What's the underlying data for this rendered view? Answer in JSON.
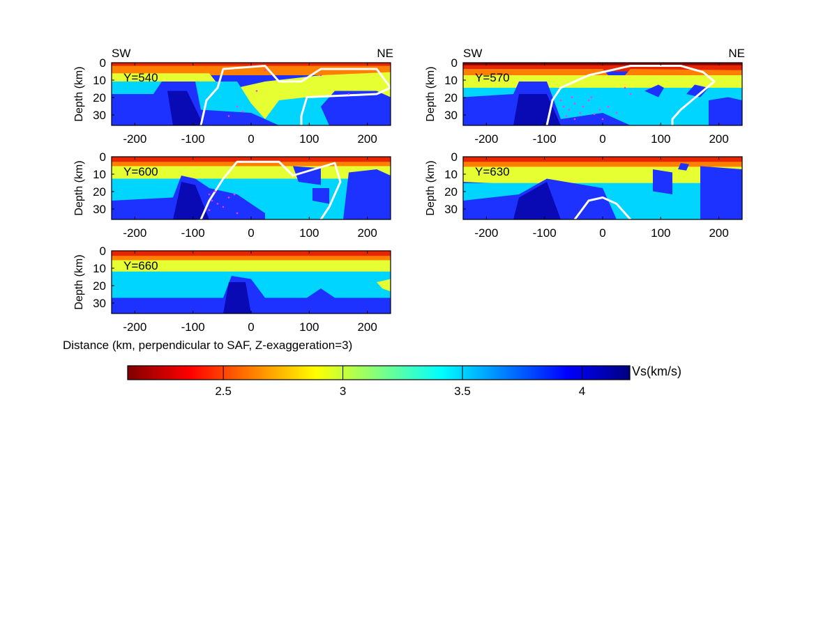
{
  "figure": {
    "direction_left": "SW",
    "direction_right": "NE",
    "x_axis_label": "Distance (km, perpendicular to SAF, Z-exaggeration=3)",
    "y_axis_label": "Depth (km)"
  },
  "chart_data": {
    "type": "heatmap",
    "x_ticks": [
      -200,
      -100,
      0,
      100,
      200
    ],
    "y_ticks": [
      0,
      10,
      20,
      30
    ],
    "xlim": [
      -240,
      240
    ],
    "ylim": [
      0,
      36
    ],
    "y_reversed": true,
    "grid": false,
    "panels": [
      {
        "label": "Y=540",
        "direction_left": "SW",
        "direction_right": "NE",
        "white_contour": true,
        "seismicity": "sparse"
      },
      {
        "label": "Y=570",
        "direction_left": "SW",
        "direction_right": "NE",
        "white_contour": true,
        "seismicity": "dense"
      },
      {
        "label": "Y=600",
        "white_contour": true,
        "seismicity": "moderate"
      },
      {
        "label": "Y=630",
        "white_contour": true,
        "seismicity": "none"
      },
      {
        "label": "Y=660",
        "white_contour": false,
        "seismicity": "none"
      }
    ],
    "colorbar": {
      "title": "Vs(km/s)",
      "min": 2.1,
      "max": 4.2,
      "ticks": [
        "2.5",
        "3",
        "3.5",
        "4"
      ],
      "tick_values": [
        2.5,
        3.0,
        3.5,
        4.0
      ],
      "colormap": "jet-reversed",
      "colors": [
        "#7f0000",
        "#ff0000",
        "#ff8000",
        "#ffff00",
        "#80ff80",
        "#00ffff",
        "#0080ff",
        "#0000ff",
        "#00007f"
      ]
    }
  }
}
